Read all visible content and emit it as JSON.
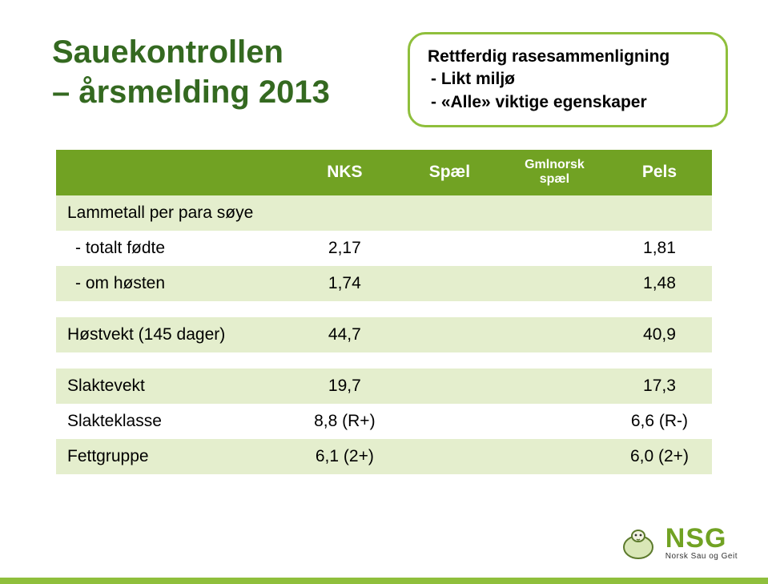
{
  "colors": {
    "dark_green": "#346920",
    "brand_green": "#71a223",
    "border_green": "#8fbf3c",
    "row_alt": "#e4eecd",
    "white": "#ffffff",
    "text": "#000000"
  },
  "title": {
    "line1": "Sauekontrollen",
    "line2": "– årsmelding 2013"
  },
  "callout": {
    "heading": "Rettferdig rasesammenligning",
    "bullet1": "- Likt miljø",
    "bullet2": "- «Alle» viktige egenskaper"
  },
  "table": {
    "columns": [
      "NKS",
      "Spæl",
      "Gmlnorsk spæl",
      "Pels"
    ],
    "rows": [
      {
        "label": "Lammetall per para søye",
        "cells": [
          "",
          "",
          "",
          ""
        ],
        "indent": false
      },
      {
        "label": "- totalt fødte",
        "cells": [
          "2,17",
          "",
          "",
          "1,81"
        ],
        "indent": true
      },
      {
        "label": "- om høsten",
        "cells": [
          "1,74",
          "",
          "",
          "1,48"
        ],
        "indent": true
      },
      {
        "label": "",
        "cells": [
          "",
          "",
          "",
          ""
        ],
        "indent": false
      },
      {
        "label": "Høstvekt (145 dager)",
        "cells": [
          "44,7",
          "",
          "",
          "40,9"
        ],
        "indent": false
      },
      {
        "label": "",
        "cells": [
          "",
          "",
          "",
          ""
        ],
        "indent": false
      },
      {
        "label": "Slaktevekt",
        "cells": [
          "19,7",
          "",
          "",
          "17,3"
        ],
        "indent": false
      },
      {
        "label": "Slakteklasse",
        "cells": [
          "8,8 (R+)",
          "",
          "",
          "6,6 (R-)"
        ],
        "indent": false
      },
      {
        "label": "Fettgruppe",
        "cells": [
          "6,1 (2+)",
          "",
          "",
          "6,0 (2+)"
        ],
        "indent": false
      }
    ]
  },
  "logo": {
    "main": "NSG",
    "sub": "Norsk Sau og Geit"
  }
}
